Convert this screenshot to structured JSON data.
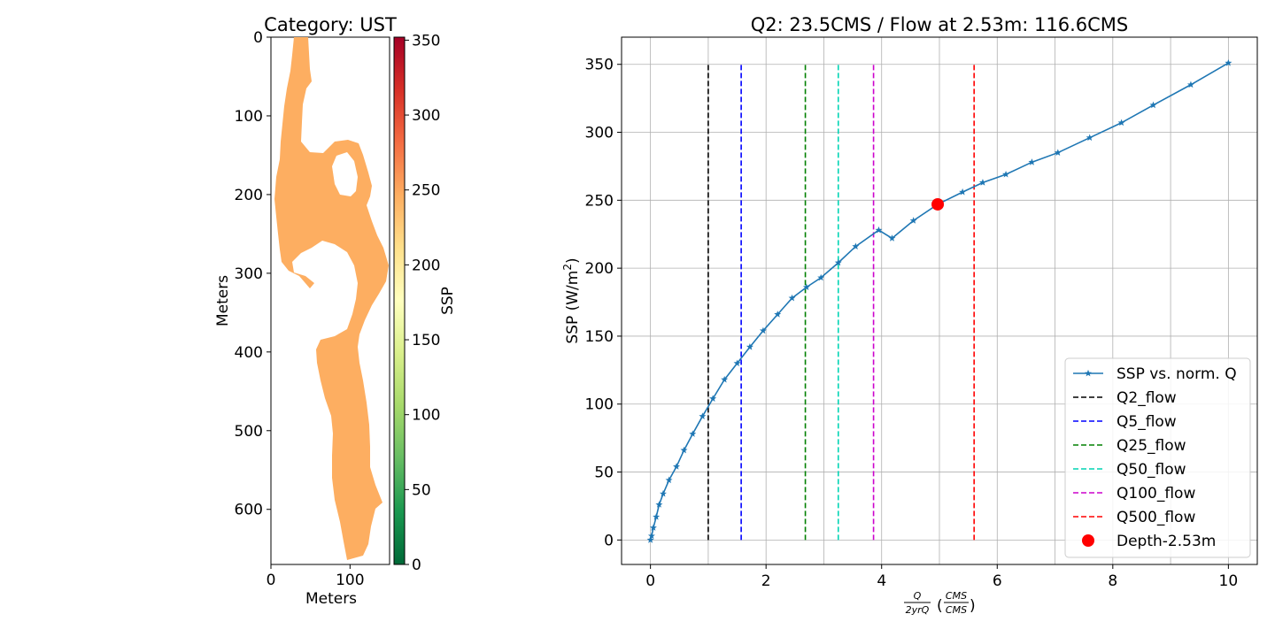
{
  "map_panel": {
    "title": "Category: UST",
    "xlabel": "Meters",
    "ylabel": "Meters",
    "x_ticks": [
      "0",
      "100"
    ],
    "y_ticks": [
      "0",
      "100",
      "200",
      "300",
      "400",
      "500",
      "600"
    ],
    "fill_color": "#fdae61",
    "colorbar": {
      "label": "SSP",
      "ticks": [
        "0",
        "50",
        "100",
        "150",
        "200",
        "250",
        "300",
        "350"
      ],
      "colors": [
        "#006837",
        "#1a9850",
        "#66bd63",
        "#a6d96a",
        "#d9ef8b",
        "#ffffbf",
        "#fee08b",
        "#fdae61",
        "#f46d43",
        "#d73027",
        "#a50026"
      ]
    }
  },
  "chart_data": {
    "type": "line",
    "title": "Q2: 23.5CMS / Flow at 2.53m: 116.6CMS",
    "xlabel": "Q/2yrQ (CMS/CMS)",
    "ylabel_text": "SSP (W/m",
    "ylabel_sup": "2",
    "ylabel_close": ")",
    "xlim": [
      -0.5,
      10.5
    ],
    "ylim": [
      -18,
      370
    ],
    "x_ticks": [
      0,
      2,
      4,
      6,
      8,
      10
    ],
    "y_ticks": [
      0,
      50,
      100,
      150,
      200,
      250,
      300,
      350
    ],
    "grid": true,
    "series": [
      {
        "name": "SSP vs. norm. Q",
        "color": "#1f77b4",
        "marker": "star",
        "x": [
          0,
          0.02,
          0.05,
          0.1,
          0.15,
          0.22,
          0.32,
          0.45,
          0.58,
          0.73,
          0.9,
          1.08,
          1.28,
          1.5,
          1.72,
          1.95,
          2.2,
          2.45,
          2.7,
          2.95,
          3.25,
          3.55,
          3.95,
          4.18,
          4.55,
          4.97,
          5.4,
          5.75,
          6.15,
          6.6,
          7.05,
          7.6,
          8.15,
          8.7,
          9.35,
          10.0
        ],
        "y": [
          0,
          3,
          9,
          17,
          26,
          34,
          44,
          54,
          66,
          78,
          91,
          104,
          118,
          130,
          142,
          154,
          166,
          178,
          186,
          193,
          204,
          216,
          228,
          222,
          235,
          247,
          256,
          263,
          269,
          278,
          285,
          296,
          307,
          320,
          335,
          351
        ]
      }
    ],
    "vlines": [
      {
        "name": "Q2_flow",
        "x": 1.0,
        "color": "#000000"
      },
      {
        "name": "Q5_flow",
        "x": 1.57,
        "color": "#0000ff"
      },
      {
        "name": "Q25_flow",
        "x": 2.68,
        "color": "#008000"
      },
      {
        "name": "Q50_flow",
        "x": 3.25,
        "color": "#00d4b4"
      },
      {
        "name": "Q100_flow",
        "x": 3.86,
        "color": "#cc00cc"
      },
      {
        "name": "Q500_flow",
        "x": 5.6,
        "color": "#ff0000"
      }
    ],
    "vline_range": [
      0,
      351
    ],
    "point": {
      "name": "Depth-2.53m",
      "x": 4.97,
      "y": 247,
      "color": "#ff0000"
    },
    "legend": {
      "placement": "lower-right",
      "entries": [
        "SSP vs. norm. Q",
        "Q2_flow",
        "Q5_flow",
        "Q25_flow",
        "Q50_flow",
        "Q100_flow",
        "Q500_flow",
        "Depth-2.53m"
      ]
    }
  }
}
